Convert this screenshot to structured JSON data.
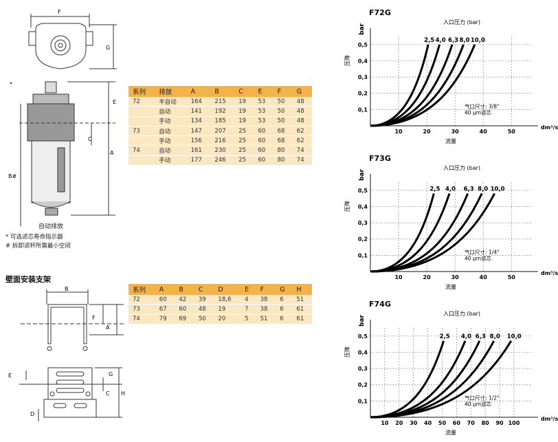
{
  "drawing_labels": {
    "f": "F",
    "g": "G",
    "e": "E",
    "c": "C",
    "a": "A",
    "b_hash": "B#",
    "star": "*",
    "bracket_b": "B",
    "bracket_f": "F",
    "bracket_a": "A",
    "bracket_e": "E",
    "bracket_g": "G",
    "bracket_c": "C",
    "bracket_h": "H",
    "bracket_d": "D"
  },
  "captions": {
    "auto_drain": "自动排放",
    "note1": "* 可选滤芯寿命指示器",
    "note2": "# 拆卸滤杯所需最小空间",
    "bracket_title": "壁面安装支架"
  },
  "table1": {
    "headers": [
      "系列",
      "排放",
      "A",
      "B",
      "C",
      "E",
      "F",
      "G"
    ],
    "rows": [
      [
        "72",
        "半自动",
        "164",
        "215",
        "19",
        "53",
        "50",
        "48"
      ],
      [
        "",
        "自动",
        "141",
        "192",
        "19",
        "53",
        "50",
        "48"
      ],
      [
        "",
        "手动",
        "134",
        "185",
        "19",
        "53",
        "50",
        "48"
      ],
      [
        "73",
        "自动",
        "147",
        "207",
        "25",
        "60",
        "68",
        "62"
      ],
      [
        "",
        "手动",
        "156",
        "216",
        "25",
        "60",
        "68",
        "62"
      ],
      [
        "74",
        "自动",
        "161",
        "230",
        "25",
        "60",
        "80",
        "74"
      ],
      [
        "",
        "手动",
        "177",
        "246",
        "25",
        "60",
        "80",
        "74"
      ]
    ]
  },
  "table2": {
    "headers": [
      "系列",
      "A",
      "B",
      "C",
      "D",
      "E",
      "F",
      "G",
      "H"
    ],
    "rows": [
      [
        "72",
        "60",
        "42",
        "39",
        "18,6",
        "4",
        "38",
        "6",
        "51"
      ],
      [
        "73",
        "67",
        "60",
        "48",
        "19",
        "7",
        "38",
        "6",
        "61"
      ],
      [
        "74",
        "79",
        "69",
        "50",
        "20",
        "5",
        "51",
        "6",
        "61"
      ]
    ]
  },
  "chart_data": [
    {
      "type": "line",
      "title": "F72G",
      "subtitle": "入口压力 (bar)",
      "ylabel_unit": "bar",
      "ylabel": "压降",
      "xlabel": "流量",
      "x_unit": "dm³/s",
      "x_ticks": [
        10,
        20,
        30,
        40,
        50
      ],
      "xlim": [
        0,
        57
      ],
      "y_ticks": [
        0.1,
        0.2,
        0.3,
        0.4,
        0.5
      ],
      "y_tick_labels": [
        "0,1",
        "0,2",
        "0,3",
        "0,4",
        "0,5"
      ],
      "ylim": [
        0,
        0.55
      ],
      "annotation": [
        "气口尺寸: 3/8\"",
        "40 μm滤芯"
      ],
      "series": [
        {
          "name": "2,5",
          "end_x": 20.5,
          "end_y": 0.5
        },
        {
          "name": "4,0",
          "end_x": 24.5,
          "end_y": 0.5
        },
        {
          "name": "6,3",
          "end_x": 29,
          "end_y": 0.5
        },
        {
          "name": "8,0",
          "end_x": 33,
          "end_y": 0.5
        },
        {
          "name": "10,0",
          "end_x": 37,
          "end_y": 0.5
        }
      ]
    },
    {
      "type": "line",
      "title": "F73G",
      "subtitle": "入口压力 (bar)",
      "ylabel_unit": "bar",
      "ylabel": "压降",
      "xlabel": "流量",
      "x_unit": "dm³/s",
      "x_ticks": [
        10,
        20,
        30,
        40,
        50
      ],
      "xlim": [
        0,
        57
      ],
      "y_ticks": [
        0.1,
        0.2,
        0.3,
        0.4,
        0.5
      ],
      "y_tick_labels": [
        "0,1",
        "0,2",
        "0,3",
        "0,4",
        "0,5"
      ],
      "ylim": [
        0,
        0.55
      ],
      "annotation": [
        "气口尺寸: 1/4\"",
        "40 μm滤芯"
      ],
      "series": [
        {
          "name": "2,5",
          "end_x": 22.5,
          "end_y": 0.48
        },
        {
          "name": "4,0",
          "end_x": 28,
          "end_y": 0.48
        },
        {
          "name": "6,3",
          "end_x": 34.5,
          "end_y": 0.48
        },
        {
          "name": "8,0",
          "end_x": 39.5,
          "end_y": 0.48
        },
        {
          "name": "10,0",
          "end_x": 44,
          "end_y": 0.48
        }
      ]
    },
    {
      "type": "line",
      "title": "F74G",
      "subtitle": "入口压力 (bar)",
      "ylabel_unit": "bar",
      "ylabel": "压降",
      "xlabel": "流量",
      "x_unit": "dm³/s",
      "x_ticks": [
        10,
        20,
        30,
        40,
        50,
        60,
        70,
        80,
        90,
        100
      ],
      "xlim": [
        0,
        112
      ],
      "y_ticks": [
        0.1,
        0.2,
        0.3,
        0.4,
        0.5
      ],
      "y_tick_labels": [
        "0,1",
        "0,2",
        "0,3",
        "0,4",
        "0,5"
      ],
      "ylim": [
        0,
        0.55
      ],
      "annotation": [
        "气口尺寸: 1/2\"",
        "40 μm滤芯"
      ],
      "series": [
        {
          "name": "2,5",
          "end_x": 51,
          "end_y": 0.47
        },
        {
          "name": "4,0",
          "end_x": 66,
          "end_y": 0.47
        },
        {
          "name": "6,3",
          "end_x": 76,
          "end_y": 0.47
        },
        {
          "name": "8,0",
          "end_x": 86,
          "end_y": 0.47
        },
        {
          "name": "10,0",
          "end_x": 98,
          "end_y": 0.47
        }
      ]
    }
  ]
}
